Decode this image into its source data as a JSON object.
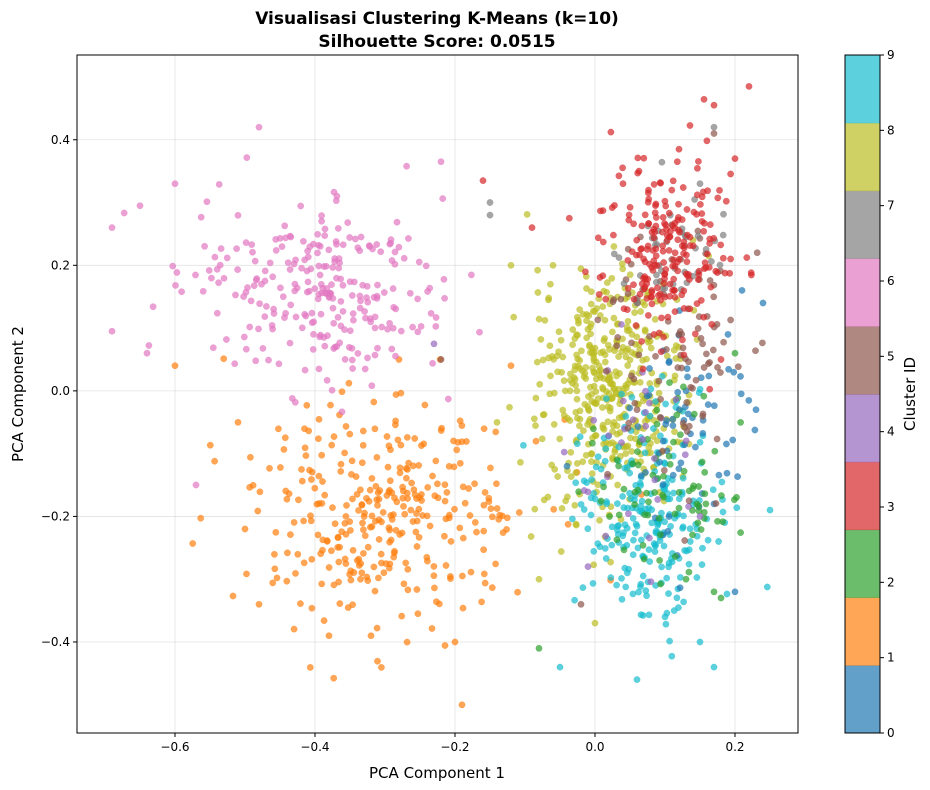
{
  "chart_data": {
    "type": "scatter",
    "title": "Visualisasi Clustering K-Means (k=10)",
    "subtitle": "Silhouette Score: 0.0515",
    "xlabel": "PCA Component 1",
    "ylabel": "PCA Component 2",
    "xlim": [
      -0.74,
      0.29
    ],
    "ylim": [
      -0.545,
      0.535
    ],
    "x_ticks": [
      -0.6,
      -0.4,
      -0.2,
      0.0,
      0.2
    ],
    "x_tick_labels": [
      "−0.6",
      "−0.4",
      "−0.2",
      "0.0",
      "0.2"
    ],
    "y_ticks": [
      -0.4,
      -0.2,
      0.0,
      0.2,
      0.4
    ],
    "y_tick_labels": [
      "−0.4",
      "−0.2",
      "0.0",
      "0.2",
      "0.4"
    ],
    "grid": true,
    "point_alpha": 0.7,
    "colorbar": {
      "label": "Cluster ID",
      "range": [
        0,
        9
      ],
      "ticks": [
        0,
        1,
        2,
        3,
        4,
        5,
        6,
        7,
        8,
        9
      ],
      "tick_labels": [
        "0",
        "1",
        "2",
        "3",
        "4",
        "5",
        "6",
        "7",
        "8",
        "9"
      ],
      "colors": [
        "#1f77b4",
        "#ff7f0e",
        "#2ca02c",
        "#d62728",
        "#9467bd",
        "#8c564b",
        "#e377c2",
        "#7f7f7f",
        "#bcbd22",
        "#17becf"
      ]
    },
    "clusters": [
      {
        "id": 0,
        "color": "#1f77b4",
        "count": 60,
        "center": [
          0.13,
          -0.07
        ],
        "spread": [
          0.045,
          0.08
        ],
        "points": [
          [
            0.24,
            0.14
          ],
          [
            0.2,
            -0.32
          ],
          [
            0.23,
            -0.03
          ],
          [
            0.21,
            0.16
          ],
          [
            0.17,
            -0.18
          ],
          [
            0.19,
            0.09
          ],
          [
            0.13,
            0.0
          ],
          [
            -0.04,
            -0.12
          ]
        ]
      },
      {
        "id": 1,
        "color": "#ff7f0e",
        "count": 330,
        "center": [
          -0.3,
          -0.19
        ],
        "spread": [
          0.1,
          0.085
        ],
        "points": [
          [
            -0.6,
            0.04
          ],
          [
            -0.51,
            -0.05
          ],
          [
            -0.5,
            -0.22
          ],
          [
            -0.48,
            -0.34
          ],
          [
            -0.38,
            -0.39
          ],
          [
            -0.32,
            -0.39
          ],
          [
            -0.2,
            -0.4
          ],
          [
            -0.19,
            -0.5
          ],
          [
            -0.28,
            0.05
          ],
          [
            -0.12,
            0.04
          ]
        ]
      },
      {
        "id": 2,
        "color": "#2ca02c",
        "count": 80,
        "center": [
          0.1,
          -0.15
        ],
        "spread": [
          0.05,
          0.07
        ],
        "points": [
          [
            0.17,
            -0.32
          ],
          [
            0.18,
            -0.33
          ],
          [
            0.2,
            0.06
          ],
          [
            -0.08,
            -0.41
          ],
          [
            0.13,
            -0.3
          ]
        ]
      },
      {
        "id": 3,
        "color": "#d62728",
        "count": 220,
        "center": [
          0.1,
          0.23
        ],
        "spread": [
          0.045,
          0.075
        ],
        "points": [
          [
            0.22,
            0.485
          ],
          [
            0.17,
            0.455
          ],
          [
            0.12,
            0.385
          ],
          [
            0.2,
            0.37
          ],
          [
            -0.16,
            0.335
          ],
          [
            -0.09,
            0.26
          ],
          [
            0.04,
            0.33
          ],
          [
            0.18,
            0.05
          ]
        ]
      },
      {
        "id": 4,
        "color": "#9467bd",
        "count": 30,
        "center": [
          0.05,
          -0.08
        ],
        "spread": [
          0.06,
          0.09
        ],
        "points": [
          [
            -0.23,
            0.075
          ],
          [
            0.15,
            -0.2
          ],
          [
            -0.01,
            -0.28
          ]
        ]
      },
      {
        "id": 5,
        "color": "#8c564b",
        "count": 90,
        "center": [
          0.12,
          0.08
        ],
        "spread": [
          0.05,
          0.09
        ],
        "points": [
          [
            0.17,
            0.41
          ],
          [
            -0.02,
            -0.34
          ],
          [
            0.06,
            -0.03
          ],
          [
            -0.22,
            0.05
          ]
        ]
      },
      {
        "id": 6,
        "color": "#e377c2",
        "count": 260,
        "center": [
          -0.39,
          0.16
        ],
        "spread": [
          0.1,
          0.07
        ],
        "points": [
          [
            -0.69,
            0.095
          ],
          [
            -0.69,
            0.26
          ],
          [
            -0.65,
            0.295
          ],
          [
            -0.48,
            0.42
          ],
          [
            -0.22,
            0.365
          ],
          [
            -0.57,
            -0.15
          ],
          [
            -0.6,
            0.33
          ],
          [
            -0.64,
            0.06
          ]
        ]
      },
      {
        "id": 7,
        "color": "#7f7f7f",
        "count": 40,
        "center": [
          0.11,
          0.22
        ],
        "spread": [
          0.04,
          0.06
        ],
        "points": [
          [
            -0.15,
            0.3
          ],
          [
            0.17,
            0.42
          ],
          [
            0.15,
            0.33
          ],
          [
            0.06,
            0.14
          ],
          [
            -0.15,
            0.28
          ]
        ]
      },
      {
        "id": 8,
        "color": "#bcbd22",
        "count": 420,
        "center": [
          0.02,
          0.0
        ],
        "spread": [
          0.055,
          0.09
        ],
        "points": [
          [
            -0.08,
            -0.3
          ],
          [
            0.0,
            -0.37
          ],
          [
            -0.12,
            0.2
          ],
          [
            0.14,
            0.24
          ],
          [
            -0.14,
            -0.05
          ],
          [
            -0.06,
            0.2
          ]
        ]
      },
      {
        "id": 9,
        "color": "#17becf",
        "count": 240,
        "center": [
          0.08,
          -0.19
        ],
        "spread": [
          0.05,
          0.085
        ],
        "points": [
          [
            0.06,
            -0.46
          ],
          [
            0.17,
            -0.44
          ],
          [
            -0.05,
            -0.44
          ],
          [
            0.25,
            -0.19
          ],
          [
            0.1,
            -0.36
          ],
          [
            0.15,
            -0.4
          ]
        ]
      }
    ]
  }
}
